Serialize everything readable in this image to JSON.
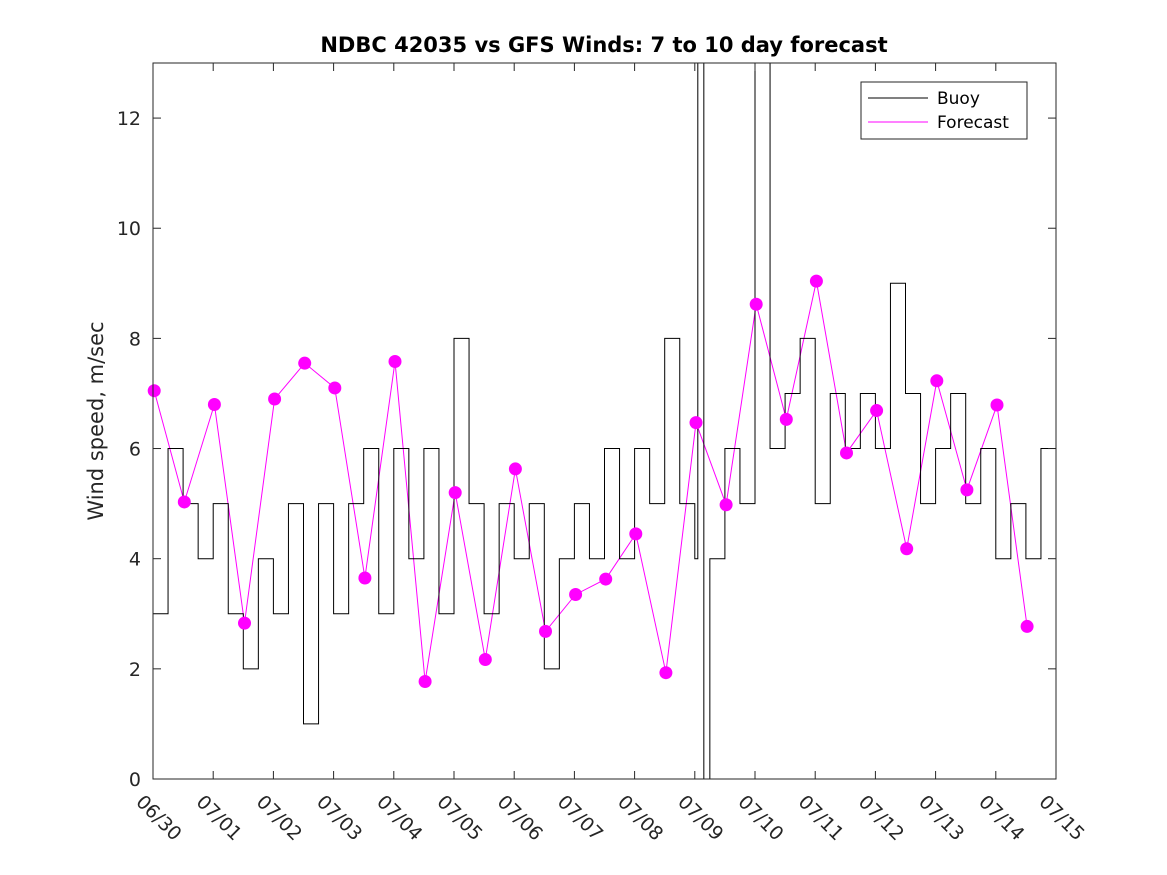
{
  "chart_data": {
    "type": "line",
    "title": "NDBC 42035 vs GFS Winds: 7 to 10 day forecast",
    "xlabel": "",
    "ylabel": "Wind speed, m/sec",
    "xlim": [
      "06/30",
      "07/15"
    ],
    "ylim": [
      0,
      13
    ],
    "x_tick_labels": [
      "06/30",
      "07/01",
      "07/02",
      "07/03",
      "07/04",
      "07/05",
      "07/06",
      "07/07",
      "07/08",
      "07/09",
      "07/10",
      "07/11",
      "07/12",
      "07/13",
      "07/14",
      "07/15"
    ],
    "y_ticks": [
      0,
      2,
      4,
      6,
      8,
      10,
      12
    ],
    "grid": false,
    "legend_position": "top-right",
    "colors": {
      "buoy": "#000000",
      "forecast": "#ff00ff"
    },
    "series": [
      {
        "name": "Buoy",
        "x_days": [
          0.0,
          0.25,
          0.5,
          0.75,
          1.0,
          1.25,
          1.5,
          1.75,
          2.0,
          2.25,
          2.5,
          2.75,
          3.0,
          3.25,
          3.5,
          3.75,
          4.0,
          4.25,
          4.5,
          4.75,
          5.0,
          5.25,
          5.5,
          5.75,
          6.0,
          6.25,
          6.5,
          6.75,
          7.0,
          7.25,
          7.5,
          7.75,
          8.0,
          8.25,
          8.5,
          8.75,
          9.0,
          9.05,
          9.15,
          9.25,
          9.5,
          9.75,
          10.0,
          10.25,
          10.5,
          10.75,
          11.0,
          11.25,
          11.5,
          11.75,
          12.0,
          12.25,
          12.5,
          12.75,
          13.0,
          13.25,
          13.5,
          13.75,
          14.0,
          14.25,
          14.5,
          14.75,
          15.0
        ],
        "values": [
          3,
          6,
          5,
          4,
          5,
          3,
          2,
          4,
          3,
          5,
          1,
          5,
          3,
          5,
          6,
          3,
          6,
          4,
          6,
          3,
          8,
          5,
          3,
          5,
          4,
          5,
          2,
          4,
          5,
          4,
          6,
          4,
          6,
          5,
          8,
          5,
          4,
          13,
          0,
          4,
          6,
          5,
          13,
          6,
          7,
          8,
          5,
          7,
          6,
          7,
          6,
          9,
          7,
          5,
          6,
          7,
          5,
          6,
          4,
          5,
          4,
          6,
          4
        ]
      },
      {
        "name": "Forecast",
        "values": [
          7.05,
          5.03,
          6.8,
          2.83,
          6.9,
          7.55,
          7.1,
          3.65,
          7.58,
          1.77,
          5.2,
          2.17,
          5.63,
          2.68,
          3.35,
          3.63,
          4.45,
          1.93,
          6.47,
          4.98,
          8.62,
          6.53,
          9.04,
          5.92,
          6.69,
          4.18,
          7.23,
          5.25,
          6.79,
          2.77
        ]
      }
    ]
  },
  "legend": {
    "buoy_label": "Buoy",
    "forecast_label": "Forecast"
  }
}
